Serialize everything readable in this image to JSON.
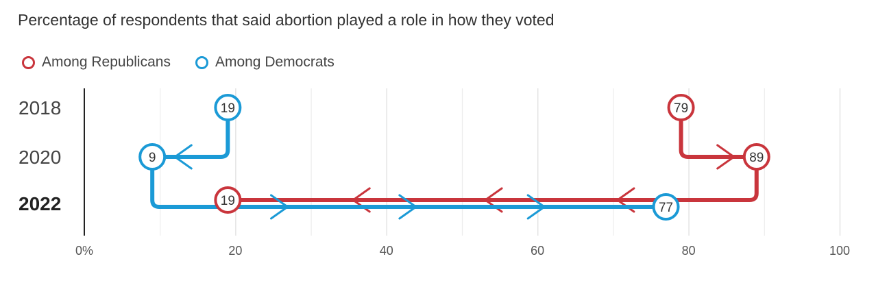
{
  "chart_data": {
    "type": "slope",
    "title": "Percentage of respondents that said abortion played a role in how they voted",
    "categories": [
      "2018",
      "2020",
      "2022"
    ],
    "highlight_category": "2022",
    "x_ticks": [
      "0%",
      "20",
      "40",
      "60",
      "80",
      "100"
    ],
    "x_tick_values": [
      0,
      20,
      40,
      60,
      80,
      100
    ],
    "xlim": [
      0,
      100
    ],
    "grid": true,
    "legend_placement": "top-left",
    "series": [
      {
        "name": "Among Republicans",
        "color": "#c9353c",
        "values": [
          79,
          89,
          19
        ]
      },
      {
        "name": "Among Democrats",
        "color": "#1b9ad6",
        "values": [
          19,
          9,
          77
        ]
      }
    ]
  }
}
